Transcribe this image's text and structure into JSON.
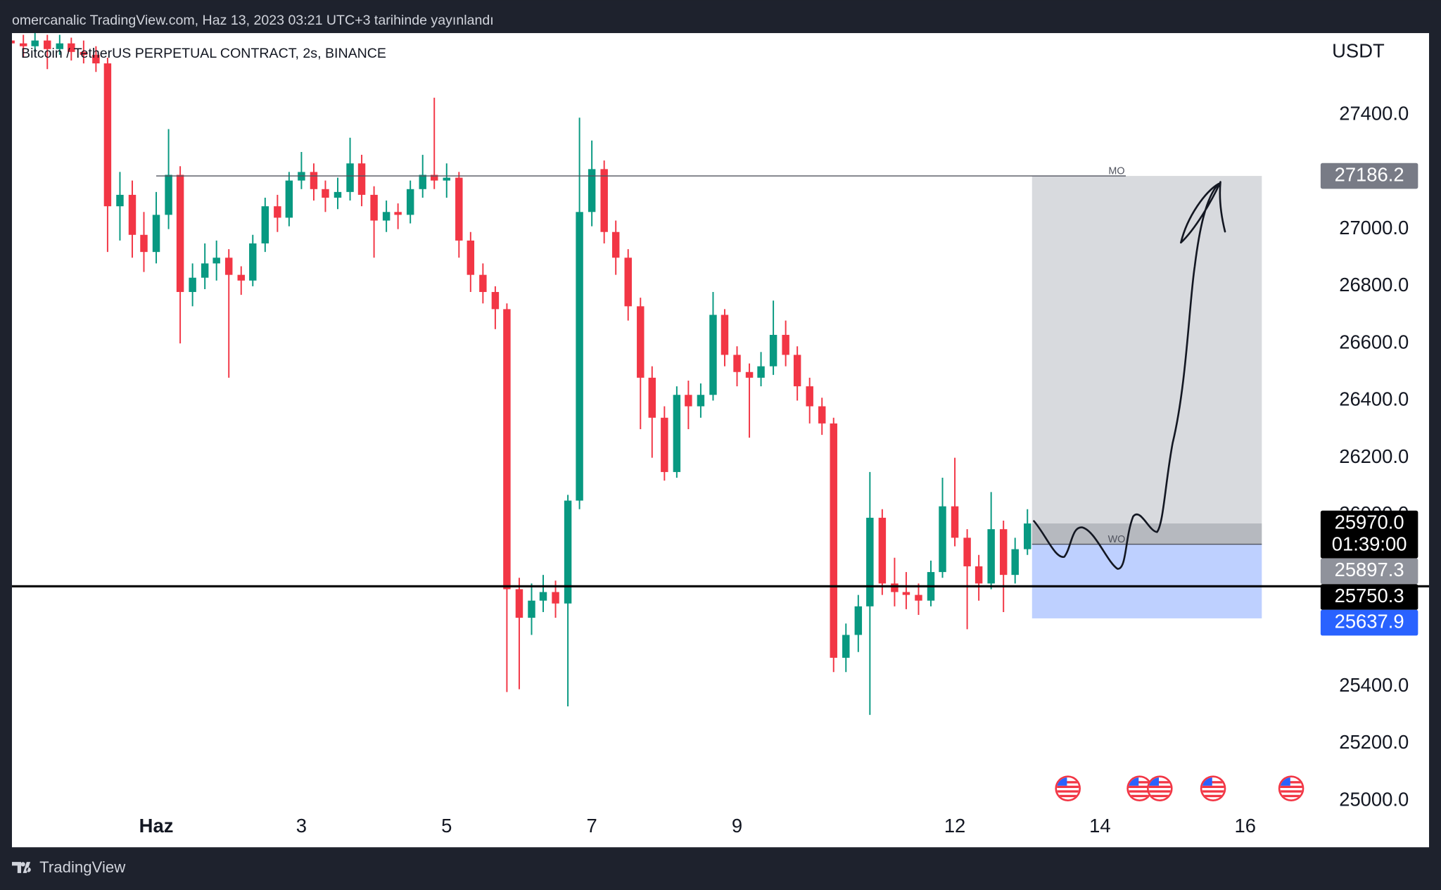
{
  "header": {
    "text": "omercanalic TradingView.com, Haz 13, 2023 03:21 UTC+3 tarihinde yayınlandı"
  },
  "footer": {
    "brand": "TradingView"
  },
  "chart_data": {
    "type": "candlestick",
    "title": "Bitcoin / TetherUS PERPETUAL CONTRACT, 2s, BINANCE",
    "y_label": "USDT",
    "up_color": "#089981",
    "down_color": "#f23645",
    "xlim": [
      -1,
      17
    ],
    "xticks": [
      {
        "value": 1,
        "label": "Haz"
      },
      3,
      5,
      7,
      9,
      12,
      14,
      16
    ],
    "ylim": [
      24972,
      27686
    ],
    "yticks": [
      {
        "value": 25000,
        "label": "25000.0"
      },
      {
        "value": 25200,
        "label": "25200.0"
      },
      {
        "value": 25400,
        "label": "25400.0"
      },
      {
        "value": 26000,
        "label": "26000.0"
      },
      {
        "value": 26200,
        "label": "26200.0"
      },
      {
        "value": 26400,
        "label": "26400.0"
      },
      {
        "value": 26600,
        "label": "26600.0"
      },
      {
        "value": 26800,
        "label": "26800.0"
      },
      {
        "value": 27000,
        "label": "27000.0"
      },
      {
        "value": 27200,
        "label": "27200.0"
      },
      {
        "value": 27400,
        "label": "27400.0"
      }
    ],
    "x": [
      -1,
      -0.83,
      -0.67,
      -0.5,
      -0.33,
      -0.17,
      0,
      0.17,
      0.33,
      0.5,
      0.67,
      0.83,
      1,
      1.17,
      1.33,
      1.5,
      1.67,
      1.83,
      2,
      2.17,
      2.33,
      2.5,
      2.67,
      2.83,
      3,
      3.17,
      3.33,
      3.5,
      3.67,
      3.83,
      4,
      4.17,
      4.33,
      4.5,
      4.67,
      4.83,
      5,
      5.17,
      5.33,
      5.5,
      5.67,
      5.83,
      6,
      6.17,
      6.33,
      6.5,
      6.67,
      6.83,
      7,
      7.17,
      7.33,
      7.5,
      7.67,
      7.83,
      8,
      8.17,
      8.33,
      8.5,
      8.67,
      8.83,
      9,
      9.17,
      9.33,
      9.5,
      9.67,
      9.83,
      10,
      10.17,
      10.33,
      10.5,
      10.67,
      10.83,
      11,
      11.17,
      11.33,
      11.5,
      11.67,
      11.83,
      12,
      12.17,
      12.33,
      12.5,
      12.67,
      12.83,
      13
    ],
    "open": [
      27660,
      27650,
      27640,
      27660,
      27630,
      27650,
      27620,
      27610,
      27580,
      27080,
      27120,
      26980,
      26920,
      27050,
      27190,
      26780,
      26830,
      26880,
      26900,
      26840,
      26820,
      26950,
      27080,
      27040,
      27170,
      27200,
      27140,
      27110,
      27130,
      27230,
      27120,
      27030,
      27060,
      27050,
      27140,
      27190,
      27170,
      27180,
      26960,
      26840,
      26780,
      26720,
      25740,
      25640,
      25700,
      25730,
      25690,
      26050,
      27060,
      27210,
      26990,
      26900,
      26730,
      26480,
      26340,
      26150,
      26420,
      26380,
      26420,
      26700,
      26560,
      26500,
      26480,
      26520,
      26630,
      26560,
      26450,
      26380,
      26320,
      25500,
      25580,
      25680,
      25990,
      25760,
      25730,
      25720,
      25700,
      25800,
      26030,
      25920,
      25820,
      25760,
      25950,
      25790,
      25880
    ],
    "high": [
      27690,
      27680,
      27690,
      27680,
      27680,
      27670,
      27660,
      27640,
      27600,
      27200,
      27170,
      27060,
      27130,
      27350,
      27220,
      26880,
      26950,
      26960,
      26930,
      26870,
      26980,
      27110,
      27120,
      27200,
      27270,
      27230,
      27170,
      27180,
      27320,
      27260,
      27150,
      27100,
      27090,
      27170,
      27260,
      27460,
      27230,
      27200,
      26990,
      26880,
      26800,
      26740,
      25780,
      25760,
      25790,
      25770,
      26070,
      27390,
      27310,
      27240,
      27030,
      26930,
      26760,
      26520,
      26380,
      26450,
      26470,
      26460,
      26780,
      26720,
      26590,
      26530,
      26570,
      26750,
      26680,
      26590,
      26480,
      26410,
      26340,
      25620,
      25720,
      26150,
      26020,
      25850,
      25800,
      25760,
      25840,
      26130,
      26200,
      25950,
      25860,
      26080,
      25980,
      25920,
      26020
    ],
    "low": [
      27560,
      27600,
      27620,
      27560,
      27610,
      27590,
      27580,
      27550,
      26920,
      26960,
      26900,
      26850,
      26880,
      27000,
      26600,
      26730,
      26790,
      26820,
      26480,
      26770,
      26800,
      26920,
      26990,
      27010,
      27140,
      27100,
      27060,
      27070,
      27100,
      27080,
      26900,
      26990,
      27000,
      27020,
      27110,
      27140,
      27110,
      26900,
      26780,
      26740,
      26650,
      25380,
      25390,
      25580,
      25660,
      25640,
      25330,
      26020,
      27010,
      26950,
      26840,
      26680,
      26300,
      26200,
      26120,
      26130,
      26300,
      26340,
      26400,
      26520,
      26450,
      26270,
      26450,
      26490,
      26520,
      26400,
      26320,
      26280,
      25450,
      25450,
      25520,
      25300,
      25720,
      25680,
      25670,
      25650,
      25680,
      25780,
      25890,
      25600,
      25700,
      25740,
      25660,
      25760,
      25860
    ],
    "close": [
      27650,
      27640,
      27660,
      27630,
      27650,
      27620,
      27610,
      27580,
      27080,
      27120,
      26980,
      26920,
      27050,
      27190,
      26780,
      26830,
      26880,
      26900,
      26840,
      26820,
      26950,
      27080,
      27040,
      27170,
      27200,
      27140,
      27110,
      27130,
      27230,
      27120,
      27030,
      27060,
      27050,
      27140,
      27190,
      27170,
      27180,
      26960,
      26840,
      26780,
      26720,
      25740,
      25640,
      25700,
      25730,
      25690,
      26050,
      27060,
      27210,
      26990,
      26900,
      26730,
      26480,
      26340,
      26150,
      26420,
      26380,
      26420,
      26700,
      26560,
      26500,
      26480,
      26520,
      26630,
      26560,
      26450,
      26380,
      26320,
      25500,
      25580,
      25680,
      25990,
      25760,
      25730,
      25720,
      25700,
      25800,
      26030,
      25920,
      25820,
      25760,
      25950,
      25790,
      25880,
      25970
    ],
    "price_labels": [
      {
        "value": 27186.2,
        "label": "27186.2",
        "color": "#787b86",
        "tag": "MO",
        "line": "thin"
      },
      {
        "value": 25970,
        "label": "25970.0",
        "color": "#000000",
        "countdown": "01:39:00"
      },
      {
        "value": 25897.3,
        "label": "25897.3",
        "color": "#8f929b",
        "tag": "WO",
        "line": "thin"
      },
      {
        "value": 25750.3,
        "label": "25750.3",
        "color": "#000000",
        "line": "thick"
      },
      {
        "value": 25637.9,
        "label": "25637.9",
        "color": "#2962ff"
      }
    ]
  }
}
